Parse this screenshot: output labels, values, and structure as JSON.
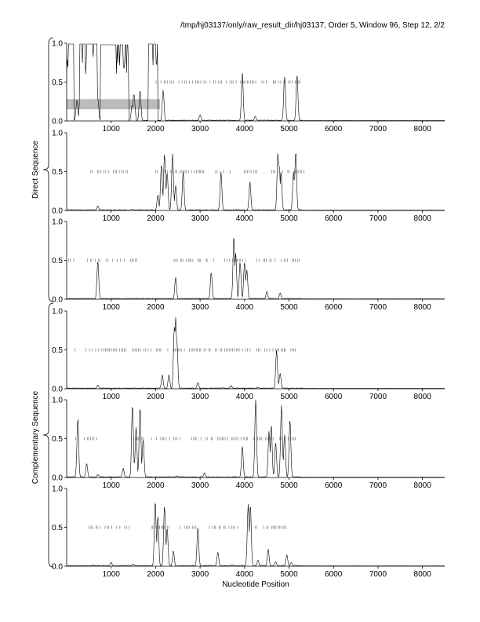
{
  "header": {
    "run_info": "/tmp/hj03137/only/raw_result_dir/hj03137, Order 5, Window 96, Step 12, 2/2"
  },
  "chart_data": {
    "type": "line",
    "xlabel": "Nucleotide Position",
    "x_ticks": [
      1000,
      2000,
      3000,
      4000,
      5000,
      6000,
      7000,
      8000
    ],
    "y_ticks": [
      "0.0",
      "0.5",
      "1.0"
    ],
    "xlim": [
      0,
      8500
    ],
    "ylim": [
      0,
      1
    ],
    "group_labels": [
      "Direct Sequence",
      "Complementary Sequence"
    ],
    "panel_count": 6,
    "shaded_region": {
      "panel": 1,
      "x": [
        0,
        2100
      ],
      "y": [
        0.15,
        0.28
      ]
    },
    "colors": {
      "line": "#000000",
      "shade": "#bbbbbb",
      "tick_mark": "#777777"
    },
    "panels": [
      {
        "peaks": [
          [
            230,
            0.27
          ],
          [
            310,
            0.55
          ],
          [
            700,
            0.3
          ],
          [
            1470,
            0.2
          ],
          [
            1510,
            0.35
          ],
          [
            1520,
            0.28
          ],
          [
            1650,
            0.4
          ],
          [
            2170,
            0.4
          ],
          [
            3000,
            0.08
          ],
          [
            3950,
            0.62
          ],
          [
            4240,
            0.06
          ],
          [
            4900,
            0.57
          ],
          [
            5180,
            0.6
          ]
        ],
        "plateaus": [
          [
            0,
            160,
            0.99
          ],
          [
            290,
            690,
            0.99
          ],
          [
            760,
            1390,
            0.98
          ],
          [
            1830,
            2050,
            0.99
          ]
        ],
        "marks": [
          [
            2000,
            2220,
            0.5
          ],
          [
            2250,
            3750,
            0.5
          ],
          [
            3800,
            5250,
            0.5
          ]
        ]
      },
      {
        "peaks": [
          [
            700,
            0.06
          ],
          [
            2050,
            0.2
          ],
          [
            2130,
            0.6
          ],
          [
            2200,
            0.73
          ],
          [
            2260,
            0.5
          ],
          [
            2380,
            0.73
          ],
          [
            2450,
            0.32
          ],
          [
            2620,
            0.5
          ],
          [
            3470,
            0.5
          ],
          [
            4120,
            0.37
          ],
          [
            4750,
            0.75
          ],
          [
            4780,
            0.6
          ],
          [
            4820,
            0.5
          ],
          [
            5100,
            0.5
          ],
          [
            5150,
            0.77
          ]
        ],
        "plateaus": [],
        "marks": [
          [
            500,
            1400,
            0.5
          ],
          [
            2000,
            3100,
            0.5
          ],
          [
            3300,
            4300,
            0.5
          ],
          [
            4600,
            5350,
            0.5
          ]
        ]
      },
      {
        "peaks": [
          [
            700,
            0.5
          ],
          [
            2450,
            0.28
          ],
          [
            3250,
            0.35
          ],
          [
            3760,
            0.82
          ],
          [
            3800,
            0.6
          ],
          [
            3900,
            0.48
          ],
          [
            4000,
            0.48
          ],
          [
            4050,
            0.38
          ],
          [
            4500,
            0.1
          ],
          [
            4800,
            0.08
          ]
        ],
        "plateaus": [],
        "marks": [
          [
            0,
            200,
            0.5
          ],
          [
            450,
            1600,
            0.5
          ],
          [
            2400,
            3350,
            0.5
          ],
          [
            3550,
            4050,
            0.5
          ],
          [
            4200,
            5250,
            0.5
          ]
        ]
      },
      {
        "peaks": [
          [
            700,
            0.05
          ],
          [
            2150,
            0.18
          ],
          [
            2300,
            0.18
          ],
          [
            2420,
            0.8
          ],
          [
            2450,
            0.92
          ],
          [
            2480,
            0.6
          ],
          [
            2950,
            0.08
          ],
          [
            3700,
            0.04
          ],
          [
            4300,
            0.02
          ],
          [
            4720,
            0.5
          ],
          [
            4800,
            0.2
          ]
        ],
        "plateaus": [],
        "marks": [
          [
            100,
            2500,
            0.5
          ],
          [
            2500,
            5150,
            0.5
          ]
        ]
      },
      {
        "peaks": [
          [
            250,
            0.77
          ],
          [
            450,
            0.18
          ],
          [
            700,
            0.04
          ],
          [
            1270,
            0.12
          ],
          [
            1480,
            0.95
          ],
          [
            1560,
            0.65
          ],
          [
            1650,
            0.92
          ],
          [
            1720,
            0.5
          ],
          [
            2500,
            0.02
          ],
          [
            3100,
            0.06
          ],
          [
            3950,
            0.4
          ],
          [
            4250,
            1.0
          ],
          [
            4550,
            0.6
          ],
          [
            4600,
            0.68
          ],
          [
            4700,
            0.45
          ],
          [
            4830,
            0.93
          ],
          [
            4900,
            0.55
          ],
          [
            5020,
            0.75
          ]
        ],
        "plateaus": [],
        "marks": [
          [
            200,
            700,
            0.5
          ],
          [
            1500,
            2600,
            0.5
          ],
          [
            2800,
            5150,
            0.5
          ]
        ]
      },
      {
        "peaks": [
          [
            600,
            0.02
          ],
          [
            1000,
            0.05
          ],
          [
            1500,
            0.03
          ],
          [
            1990,
            0.85
          ],
          [
            2050,
            0.65
          ],
          [
            2200,
            0.78
          ],
          [
            2260,
            0.5
          ],
          [
            2400,
            0.2
          ],
          [
            2950,
            0.5
          ],
          [
            3400,
            0.18
          ],
          [
            3720,
            0.02
          ],
          [
            4080,
            0.8
          ],
          [
            4130,
            0.8
          ],
          [
            4300,
            0.08
          ],
          [
            4530,
            0.22
          ],
          [
            4700,
            0.06
          ],
          [
            4950,
            0.15
          ],
          [
            5050,
            0.05
          ]
        ],
        "plateaus": [],
        "marks": [
          [
            500,
            1400,
            0.5
          ],
          [
            1900,
            2300,
            0.5
          ],
          [
            2500,
            2950,
            0.5
          ],
          [
            3200,
            3850,
            0.5
          ],
          [
            4200,
            4950,
            0.5
          ]
        ]
      }
    ]
  }
}
